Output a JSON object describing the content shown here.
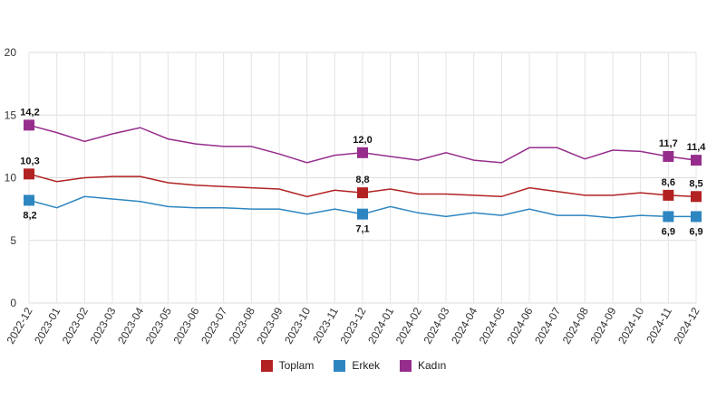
{
  "chart_data": {
    "type": "line",
    "title": "",
    "xlabel": "",
    "ylabel": "",
    "ylim": [
      0,
      20
    ],
    "yticks": [
      0,
      5,
      10,
      15,
      20
    ],
    "grid": true,
    "legend_position": "bottom-center",
    "categories": [
      "2022-12",
      "2023-01",
      "2023-02",
      "2023-03",
      "2023-04",
      "2023-05",
      "2023-06",
      "2023-07",
      "2023-08",
      "2023-09",
      "2023-10",
      "2023-11",
      "2023-12",
      "2024-01",
      "2024-02",
      "2024-03",
      "2024-04",
      "2024-05",
      "2024-06",
      "2024-07",
      "2024-08",
      "2024-09",
      "2024-10",
      "2024-11",
      "2024-12"
    ],
    "series": [
      {
        "name": "Toplam",
        "color": "#b22222",
        "values": [
          10.3,
          9.7,
          10.0,
          10.1,
          10.1,
          9.6,
          9.4,
          9.3,
          9.2,
          9.1,
          8.5,
          9.0,
          8.8,
          9.1,
          8.7,
          8.7,
          8.6,
          8.5,
          9.2,
          8.9,
          8.6,
          8.6,
          8.8,
          8.6,
          8.5
        ],
        "labeled_points": [
          {
            "index": 0,
            "text": "10,3"
          },
          {
            "index": 12,
            "text": "8,8"
          },
          {
            "index": 23,
            "text": "8,6"
          },
          {
            "index": 24,
            "text": "8,5"
          }
        ]
      },
      {
        "name": "Erkek",
        "color": "#2e86c1",
        "values": [
          8.2,
          7.6,
          8.5,
          8.3,
          8.1,
          7.7,
          7.6,
          7.6,
          7.5,
          7.5,
          7.1,
          7.5,
          7.1,
          7.7,
          7.2,
          6.9,
          7.2,
          7.0,
          7.5,
          7.0,
          7.0,
          6.8,
          7.0,
          6.9,
          6.9
        ],
        "labeled_points": [
          {
            "index": 0,
            "text": "8,2"
          },
          {
            "index": 12,
            "text": "7,1"
          },
          {
            "index": 23,
            "text": "6,9"
          },
          {
            "index": 24,
            "text": "6,9"
          }
        ]
      },
      {
        "name": "Kadın",
        "color": "#962d8c",
        "values": [
          14.2,
          13.6,
          12.9,
          13.5,
          14.0,
          13.1,
          12.7,
          12.5,
          12.5,
          11.9,
          11.2,
          11.8,
          12.0,
          11.7,
          11.4,
          12.0,
          11.4,
          11.2,
          12.4,
          12.4,
          11.5,
          12.2,
          12.1,
          11.7,
          11.4
        ],
        "labeled_points": [
          {
            "index": 0,
            "text": "14,2"
          },
          {
            "index": 12,
            "text": "12,0"
          },
          {
            "index": 23,
            "text": "11,7"
          },
          {
            "index": 24,
            "text": "11,4"
          }
        ]
      }
    ]
  }
}
